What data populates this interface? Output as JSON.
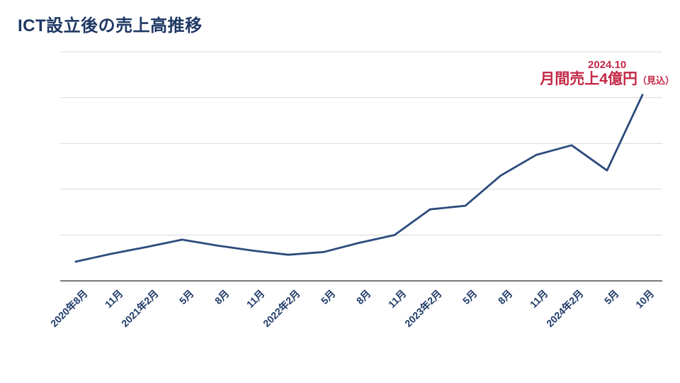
{
  "slide": {
    "title": "ICT設立後の売上高推移"
  },
  "annotation": {
    "date": "2024.10",
    "value_text": "月間売上4億円",
    "note": "（見込）"
  },
  "chart_data": {
    "type": "line",
    "title": "ICT設立後の売上高推移",
    "categories": [
      "2020年8月",
      "11月",
      "2021年2月",
      "5月",
      "8月",
      "11月",
      "2022年2月",
      "5月",
      "8月",
      "11月",
      "2023年2月",
      "5月",
      "8月",
      "11月",
      "2024年2月",
      "5月",
      "10月"
    ],
    "series": [
      {
        "name": "売上高",
        "values": [
          0.42,
          0.59,
          0.74,
          0.9,
          0.77,
          0.66,
          0.57,
          0.63,
          0.83,
          1.0,
          1.56,
          1.64,
          2.3,
          2.75,
          2.96,
          2.41,
          4.06
        ]
      }
    ],
    "xlabel": "",
    "ylabel": "",
    "y_unit": "億円",
    "ylim": [
      0,
      5
    ],
    "gridline_step": 1,
    "y_tick_labels_visible": false,
    "grid": "horizontal only",
    "legend": "none",
    "annotation": {
      "x_category": "10月",
      "text": "2024.10 月間売上4億円（見込）"
    },
    "colors": {
      "line": "#2c4b7c",
      "title": "#1f3864",
      "axis_labels": "#1f3a68",
      "annotation": "#c32846",
      "gridline": "#d9d9d9",
      "axis": "#4d4d4d",
      "background": "#ffffff"
    }
  }
}
